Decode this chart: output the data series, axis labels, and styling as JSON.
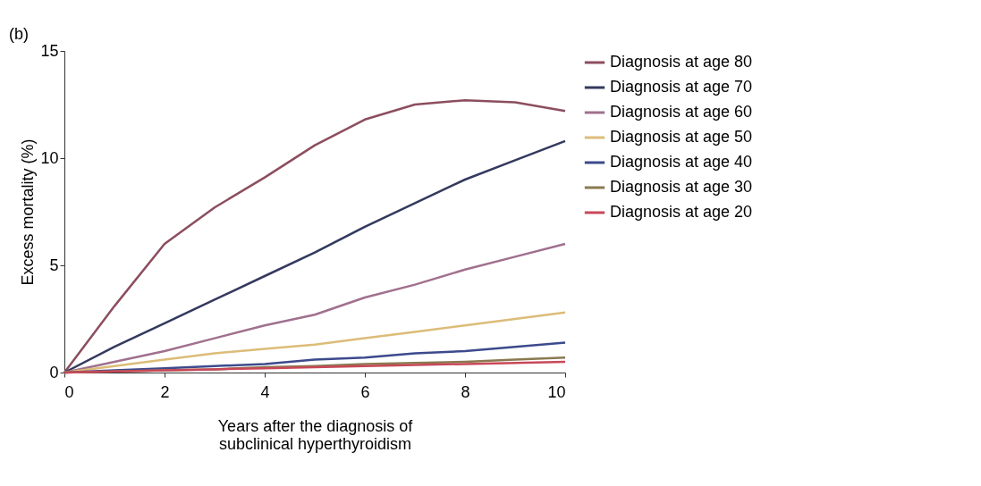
{
  "chart_data": {
    "type": "line",
    "xlabel": "Years after the diagnosis of\nsubclinical hyperthyroidism",
    "ylabel": "Excess mortality (%)",
    "annotations": [
      "(b)"
    ],
    "x": [
      0,
      1,
      2,
      3,
      4,
      5,
      6,
      7,
      8,
      9,
      10
    ],
    "series": [
      {
        "name": "Diagnosis at age 80",
        "color": "#8c4e5e",
        "values": [
          0,
          3.1,
          6.0,
          7.7,
          9.1,
          10.6,
          11.8,
          12.5,
          12.7,
          12.6,
          12.2
        ]
      },
      {
        "name": "Diagnosis at age 70",
        "color": "#34395e",
        "values": [
          0,
          1.2,
          2.3,
          3.4,
          4.5,
          5.6,
          6.8,
          7.9,
          9.0,
          9.9,
          10.8
        ]
      },
      {
        "name": "Diagnosis at age 60",
        "color": "#a0708e",
        "values": [
          0,
          0.5,
          1.0,
          1.6,
          2.2,
          2.7,
          3.5,
          4.1,
          4.8,
          5.4,
          6.0
        ]
      },
      {
        "name": "Diagnosis at age 50",
        "color": "#dcbc78",
        "values": [
          0,
          0.3,
          0.6,
          0.9,
          1.1,
          1.3,
          1.6,
          1.9,
          2.2,
          2.5,
          2.8
        ]
      },
      {
        "name": "Diagnosis at age 40",
        "color": "#3c4a8c",
        "values": [
          0,
          0.1,
          0.2,
          0.3,
          0.4,
          0.6,
          0.7,
          0.9,
          1.0,
          1.2,
          1.4
        ]
      },
      {
        "name": "Diagnosis at age 30",
        "color": "#8a7a50",
        "values": [
          0,
          0.05,
          0.1,
          0.15,
          0.25,
          0.3,
          0.4,
          0.45,
          0.5,
          0.6,
          0.7
        ]
      },
      {
        "name": "Diagnosis at age 20",
        "color": "#c84858",
        "values": [
          0,
          0.05,
          0.1,
          0.15,
          0.2,
          0.25,
          0.3,
          0.35,
          0.4,
          0.45,
          0.5
        ]
      }
    ],
    "xlim": [
      0,
      10
    ],
    "xticks": [
      0,
      2,
      4,
      6,
      8,
      10
    ],
    "ylim": [
      0,
      15
    ],
    "yticks": [
      0,
      5,
      10,
      15
    ],
    "grid": false,
    "legend": "right",
    "marker": "none",
    "line_style": "solid"
  }
}
